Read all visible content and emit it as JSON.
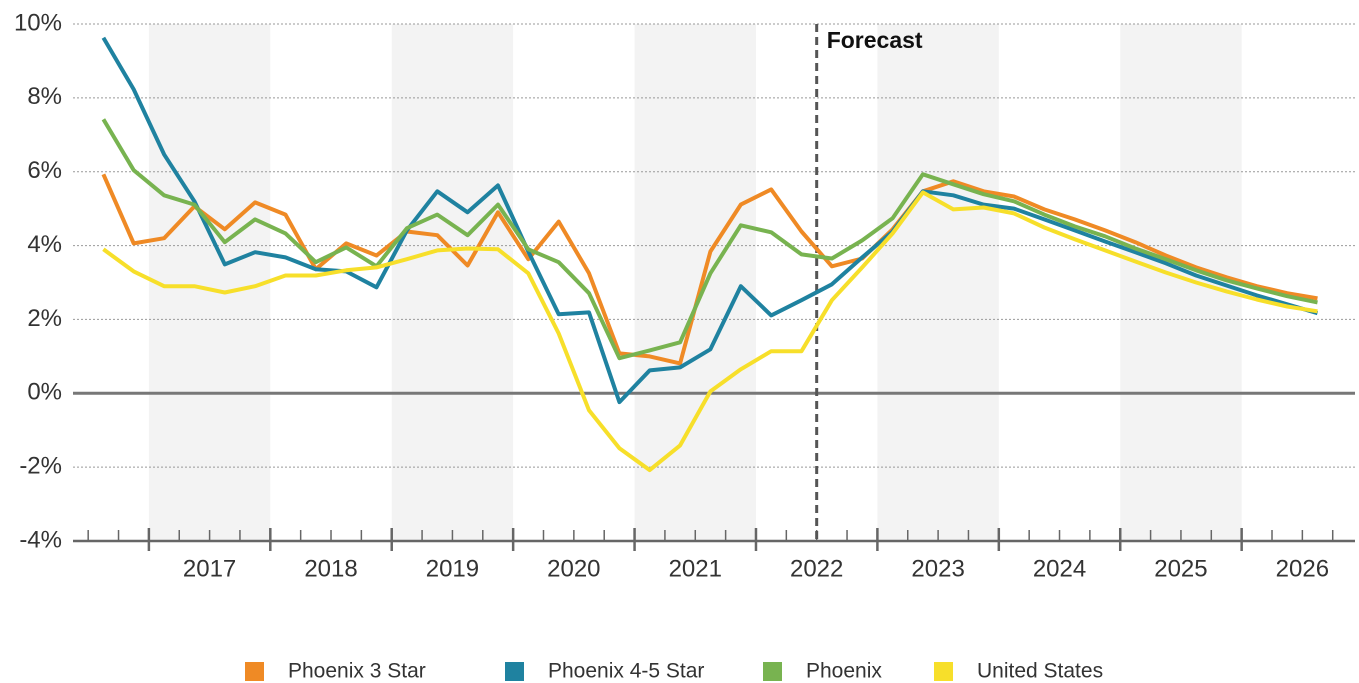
{
  "chart_data": {
    "type": "line",
    "x": [
      2016.625,
      2016.875,
      2017.125,
      2017.375,
      2017.625,
      2017.875,
      2018.125,
      2018.375,
      2018.625,
      2018.875,
      2019.125,
      2019.375,
      2019.625,
      2019.875,
      2020.125,
      2020.375,
      2020.625,
      2020.875,
      2021.125,
      2021.375,
      2021.625,
      2021.875,
      2022.125,
      2022.375,
      2022.625,
      2022.875,
      2023.125,
      2023.375,
      2023.625,
      2023.875,
      2024.125,
      2024.375,
      2024.625,
      2024.875,
      2025.125,
      2025.375,
      2025.625,
      2025.875,
      2026.125,
      2026.375,
      2026.625
    ],
    "xlim": [
      2016.375,
      2026.95
    ],
    "xticks": [
      {
        "value": 2017.5,
        "label": "2017"
      },
      {
        "value": 2018.5,
        "label": "2018"
      },
      {
        "value": 2019.5,
        "label": "2019"
      },
      {
        "value": 2020.5,
        "label": "2020"
      },
      {
        "value": 2021.5,
        "label": "2021"
      },
      {
        "value": 2022.5,
        "label": "2022"
      },
      {
        "value": 2023.5,
        "label": "2023"
      },
      {
        "value": 2024.5,
        "label": "2024"
      },
      {
        "value": 2025.5,
        "label": "2025"
      },
      {
        "value": 2026.5,
        "label": "2026"
      }
    ],
    "ylim": [
      -4,
      10
    ],
    "yticks": [
      {
        "value": -4,
        "label": "-4%"
      },
      {
        "value": -2,
        "label": "-2%"
      },
      {
        "value": 0,
        "label": "0%"
      },
      {
        "value": 2,
        "label": "2%"
      },
      {
        "value": 4,
        "label": "4%"
      },
      {
        "value": 6,
        "label": "6%"
      },
      {
        "value": 8,
        "label": "8%"
      },
      {
        "value": 10,
        "label": "10%"
      }
    ],
    "grid": true,
    "forecast": {
      "label": "Forecast",
      "x": 2022.5
    },
    "series": [
      {
        "name": "Phoenix 3 Star",
        "color": "#ef8a25",
        "values": [
          5.93,
          4.06,
          4.2,
          5.06,
          4.44,
          5.17,
          4.84,
          3.36,
          4.06,
          3.73,
          4.38,
          4.28,
          3.46,
          4.9,
          3.63,
          4.65,
          3.25,
          1.08,
          1.0,
          0.81,
          3.84,
          5.11,
          5.52,
          4.38,
          3.44,
          3.65,
          4.44,
          5.47,
          5.74,
          5.47,
          5.33,
          4.98,
          4.71,
          4.41,
          4.09,
          3.73,
          3.41,
          3.14,
          2.9,
          2.71,
          2.57
        ]
      },
      {
        "name": "Phoenix 4-5 Star",
        "color": "#1f82a0",
        "values": [
          9.63,
          8.23,
          6.47,
          5.2,
          3.49,
          3.82,
          3.68,
          3.36,
          3.3,
          2.87,
          4.41,
          5.47,
          4.9,
          5.63,
          3.84,
          2.14,
          2.19,
          -0.24,
          0.62,
          0.7,
          1.19,
          2.9,
          2.11,
          2.52,
          2.95,
          3.68,
          4.38,
          5.47,
          5.36,
          5.11,
          5.0,
          4.71,
          4.41,
          4.11,
          3.82,
          3.52,
          3.19,
          2.92,
          2.65,
          2.41,
          2.17
        ]
      },
      {
        "name": "Phoenix",
        "color": "#78b350",
        "values": [
          7.42,
          6.04,
          5.36,
          5.11,
          4.09,
          4.71,
          4.33,
          3.55,
          3.95,
          3.44,
          4.47,
          4.84,
          4.28,
          5.11,
          3.9,
          3.55,
          2.71,
          0.95,
          1.16,
          1.38,
          3.25,
          4.55,
          4.36,
          3.76,
          3.65,
          4.14,
          4.74,
          5.93,
          5.66,
          5.39,
          5.2,
          4.84,
          4.52,
          4.25,
          3.92,
          3.63,
          3.33,
          3.06,
          2.84,
          2.63,
          2.46
        ]
      },
      {
        "name": "United States",
        "color": "#f7df2a",
        "values": [
          3.9,
          3.3,
          2.9,
          2.9,
          2.73,
          2.9,
          3.19,
          3.19,
          3.33,
          3.41,
          3.63,
          3.87,
          3.92,
          3.9,
          3.25,
          1.62,
          -0.46,
          -1.49,
          -2.08,
          -1.41,
          0.05,
          0.65,
          1.14,
          1.14,
          2.52,
          3.41,
          4.33,
          5.44,
          4.98,
          5.03,
          4.87,
          4.49,
          4.17,
          3.87,
          3.57,
          3.27,
          3.0,
          2.76,
          2.54,
          2.35,
          2.22
        ]
      }
    ]
  }
}
